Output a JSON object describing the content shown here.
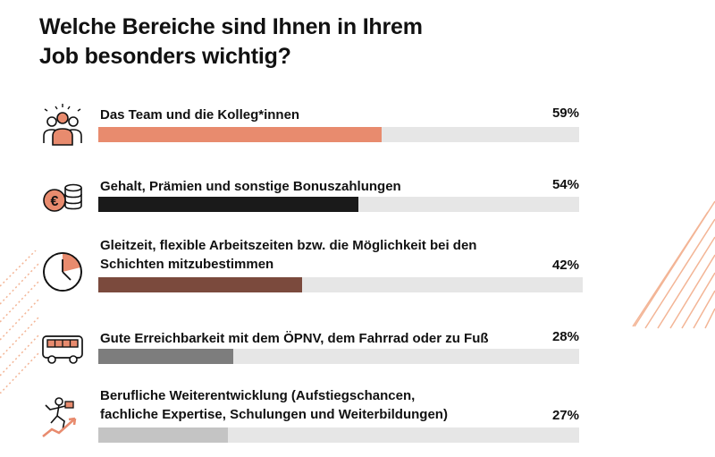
{
  "title": {
    "line1": "Welche Bereiche sind Ihnen in Ihrem",
    "line2": "Job besonders wichtig?"
  },
  "colors": {
    "team": "#e88b6e",
    "gehalt": "#1a1a1a",
    "gleitzeit": "#7b4a3d",
    "oepnv": "#7d7d7d",
    "weiterentwicklung": "#c4c4c4",
    "track": "#e6e6e6",
    "accent": "#f0a27f"
  },
  "icons": [
    "team-icon",
    "coins-icon",
    "clock-icon",
    "bus-icon",
    "career-icon"
  ],
  "chart_data": {
    "type": "bar",
    "orientation": "horizontal",
    "xlim": [
      0,
      100
    ],
    "grid": false,
    "categories": [
      [
        "Das Team und die Kolleg*innen"
      ],
      [
        "Gehalt, Prämien und sonstige Bonuszahlungen"
      ],
      [
        "Gleitzeit, flexible Arbeitszeiten bzw. die Möglichkeit bei den",
        "Schichten mitzubestimmen"
      ],
      [
        "Gute Erreichbarkeit mit dem ÖPNV, dem Fahrrad oder zu Fuß"
      ],
      [
        "Berufliche Weiterentwicklung (Aufstiegschancen,",
        "fachliche Expertise, Schulungen und Weiterbildungen)"
      ]
    ],
    "values": [
      59,
      54,
      42,
      28,
      27
    ],
    "value_labels": [
      "59%",
      "54%",
      "42%",
      "28%",
      "27%"
    ]
  }
}
